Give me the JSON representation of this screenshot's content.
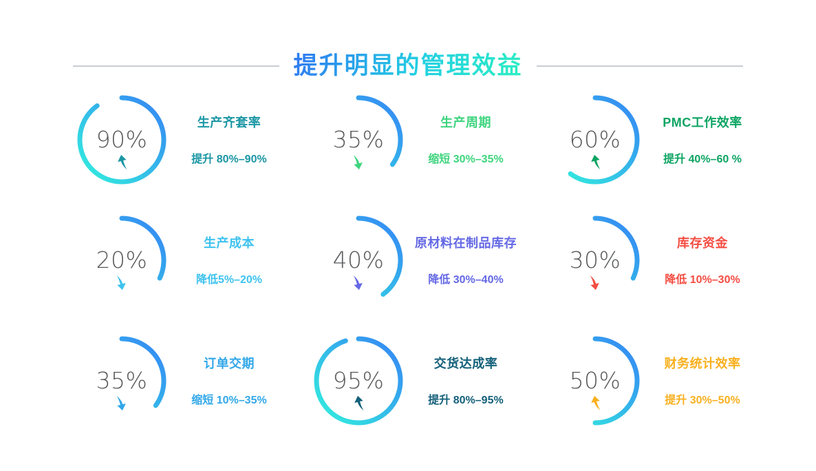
{
  "header": {
    "title": "提升明显的管理效益",
    "title_gradient": [
      "#2f7ff0",
      "#23d0e2",
      "#2cecc5"
    ],
    "divider_color": "#c9cdd1"
  },
  "ring_style": {
    "gradient_start": "#3591f2",
    "gradient_end": "#33e3e0",
    "percent_color": "#58595b",
    "min_sweep_percent": 32
  },
  "metrics": [
    {
      "percent": 90,
      "percent_label": "90%",
      "title": "生产齐套率",
      "subtitle": "提升 80%–90%",
      "direction": "up",
      "color": "#1b96a4"
    },
    {
      "percent": 35,
      "percent_label": "35%",
      "title": "生产周期",
      "subtitle": "缩短 30%–35%",
      "direction": "down",
      "color": "#3ed47e"
    },
    {
      "percent": 60,
      "percent_label": "60%",
      "title": "PMC工作效率",
      "subtitle": "提升 40%–60 %",
      "direction": "up",
      "color": "#0da463"
    },
    {
      "percent": 20,
      "percent_label": "20%",
      "title": "生产成本",
      "subtitle": "降低5%–20%",
      "direction": "down",
      "color": "#3ec2ee"
    },
    {
      "percent": 40,
      "percent_label": "40%",
      "title": "原材料在制品库存",
      "subtitle": "降低 30%–40%",
      "direction": "down",
      "color": "#6468e4"
    },
    {
      "percent": 30,
      "percent_label": "30%",
      "title": "库存资金",
      "subtitle": "降低 10%–30%",
      "direction": "down",
      "color": "#f44d42"
    },
    {
      "percent": 35,
      "percent_label": "35%",
      "title": "订单交期",
      "subtitle": "缩短 10%–35%",
      "direction": "down",
      "color": "#31a7e8"
    },
    {
      "percent": 95,
      "percent_label": "95%",
      "title": "交货达成率",
      "subtitle": "提升 80%–95%",
      "direction": "up",
      "color": "#14607a"
    },
    {
      "percent": 50,
      "percent_label": "50%",
      "title": "财务统计效率",
      "subtitle": "提升 30%–50%",
      "direction": "up",
      "color": "#f8b01f"
    }
  ],
  "chart_data": {
    "type": "pie",
    "variant": "progress-rings",
    "title": "提升明显的管理效益",
    "unit": "%",
    "legend": false,
    "layout": "3x3-grid, arcs start at 12 o'clock sweeping clockwise, blue-to-cyan gradient stroke",
    "items": [
      {
        "label": "生产齐套率",
        "value": 90,
        "change": "提升 80%–90%",
        "trend": "up"
      },
      {
        "label": "生产周期",
        "value": 35,
        "change": "缩短 30%–35%",
        "trend": "down"
      },
      {
        "label": "PMC工作效率",
        "value": 60,
        "change": "提升 40%–60 %",
        "trend": "up"
      },
      {
        "label": "生产成本",
        "value": 20,
        "change": "降低5%–20%",
        "trend": "down"
      },
      {
        "label": "原材料在制品库存",
        "value": 40,
        "change": "降低 30%–40%",
        "trend": "down"
      },
      {
        "label": "库存资金",
        "value": 30,
        "change": "降低 10%–30%",
        "trend": "down"
      },
      {
        "label": "订单交期",
        "value": 35,
        "change": "缩短 10%–35%",
        "trend": "down"
      },
      {
        "label": "交货达成率",
        "value": 95,
        "change": "提升 80%–95%",
        "trend": "up"
      },
      {
        "label": "财务统计效率",
        "value": 50,
        "change": "提升 30%–50%",
        "trend": "up"
      }
    ]
  }
}
